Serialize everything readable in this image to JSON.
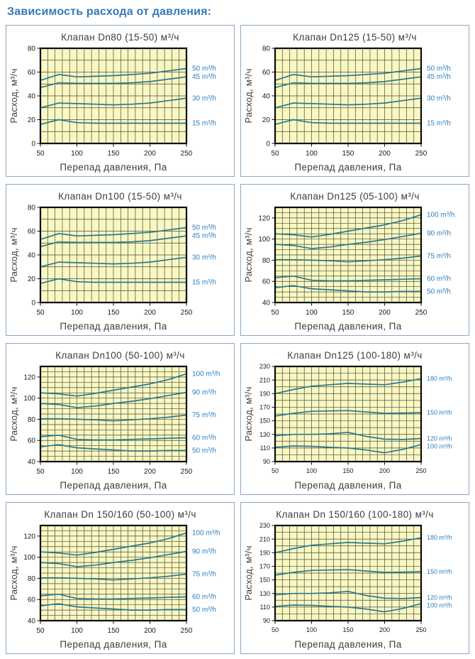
{
  "page_title": "Зависимость расхода от давления:",
  "axis_labels": {
    "x": "Перепад давления, Па",
    "y": "Расход, м³/ч"
  },
  "colors": {
    "page_title_blue": "#3579b6",
    "panel_border": "#8aa6c5",
    "chart_title_text": "#3d3d3d",
    "plot_bg": "#f9f7c2",
    "grid_line": "#4b4b3a",
    "plot_border": "#0a0a0a",
    "series_line": "#2a7a8f",
    "series_label_blue": "#2e7ec0",
    "tick_text": "#1a1a1a"
  },
  "chart_data": [
    {
      "type": "line",
      "title": "Клапан Dn80 (15-50) м³/ч",
      "xlabel": "Перепад давления, Па",
      "ylabel": "Расход, м³/ч",
      "xlim": [
        50,
        250
      ],
      "ylim": [
        0,
        80
      ],
      "xticks": [
        50,
        100,
        150,
        200,
        250
      ],
      "yticks": [
        0,
        20,
        40,
        60,
        80
      ],
      "x_grid_step": 10,
      "y_grid_step": 10,
      "x": [
        50,
        75,
        100,
        125,
        150,
        175,
        200,
        225,
        250
      ],
      "series": [
        {
          "name": "50 m³/h",
          "values": [
            53,
            58,
            56,
            56.5,
            57,
            58,
            59,
            61,
            63
          ]
        },
        {
          "name": "45 m³/h",
          "values": [
            47,
            51,
            50.5,
            50.5,
            50.5,
            51,
            52,
            54,
            56
          ]
        },
        {
          "name": "30 m³/h",
          "values": [
            30,
            34,
            33.5,
            33,
            32.5,
            33,
            34,
            36,
            38
          ]
        },
        {
          "name": "15 m³/h",
          "values": [
            16,
            20,
            17.5,
            17,
            17,
            17,
            17,
            17,
            17
          ]
        }
      ]
    },
    {
      "type": "line",
      "title": "Клапан Dn125 (15-50) м³/ч",
      "xlabel": "Перепад давления, Па",
      "ylabel": "Расход, м³/ч",
      "xlim": [
        50,
        250
      ],
      "ylim": [
        0,
        80
      ],
      "xticks": [
        50,
        100,
        150,
        200,
        250
      ],
      "yticks": [
        0,
        20,
        40,
        60,
        80
      ],
      "x_grid_step": 10,
      "y_grid_step": 10,
      "x": [
        50,
        75,
        100,
        125,
        150,
        175,
        200,
        225,
        250
      ],
      "series": [
        {
          "name": "50 m³/h",
          "values": [
            53,
            58,
            56,
            56.5,
            57,
            58,
            59,
            61,
            63
          ]
        },
        {
          "name": "45 m³/h",
          "values": [
            47,
            51,
            50.5,
            50.5,
            50.5,
            51,
            52,
            54,
            56
          ]
        },
        {
          "name": "30 m³/h",
          "values": [
            30,
            34,
            33.5,
            33,
            32.5,
            33,
            34,
            36,
            38
          ]
        },
        {
          "name": "15 m³/h",
          "values": [
            16,
            20,
            17.5,
            17,
            17,
            17,
            17,
            17,
            17
          ]
        }
      ]
    },
    {
      "type": "line",
      "title": "Клапан Dn100 (15-50) м³/ч",
      "xlabel": "Перепад давления, Па",
      "ylabel": "Расход, м³/ч",
      "xlim": [
        50,
        250
      ],
      "ylim": [
        0,
        80
      ],
      "xticks": [
        50,
        100,
        150,
        200,
        250
      ],
      "yticks": [
        0,
        20,
        40,
        60,
        80
      ],
      "x_grid_step": 10,
      "y_grid_step": 10,
      "x": [
        50,
        75,
        100,
        125,
        150,
        175,
        200,
        225,
        250
      ],
      "series": [
        {
          "name": "50 m³/h",
          "values": [
            53,
            58,
            56,
            56.5,
            57,
            58,
            59,
            61,
            63
          ]
        },
        {
          "name": "45 m³/h",
          "values": [
            47,
            51,
            50.5,
            50.5,
            50.5,
            51,
            52,
            54,
            56
          ]
        },
        {
          "name": "30 m³/h",
          "values": [
            30,
            34,
            33.5,
            33,
            32.5,
            33,
            34,
            36,
            38
          ]
        },
        {
          "name": "15 m³/h",
          "values": [
            16,
            20,
            17.5,
            17,
            17,
            17,
            17,
            17,
            17
          ]
        }
      ]
    },
    {
      "type": "line",
      "title": "Клапан Dn125 (05-100) м³/ч",
      "xlabel": "Перепад давления, Па",
      "ylabel": "Расход, м³/ч",
      "xlim": [
        50,
        250
      ],
      "ylim": [
        40,
        130
      ],
      "xticks": [
        50,
        100,
        150,
        200,
        250
      ],
      "yticks": [
        40,
        60,
        80,
        100,
        120
      ],
      "x_grid_step": 10,
      "y_grid_step": 5,
      "x": [
        50,
        75,
        100,
        125,
        150,
        175,
        200,
        225,
        250
      ],
      "series": [
        {
          "name": "100 m³/h",
          "values": [
            105,
            104,
            102,
            104.5,
            107.5,
            110.5,
            113.5,
            117.5,
            123
          ]
        },
        {
          "name": "90 m³/h",
          "values": [
            95,
            94,
            91,
            92.5,
            95,
            97,
            99.5,
            102.5,
            105.5
          ]
        },
        {
          "name": "75 m³/h",
          "values": [
            80.5,
            80.5,
            80,
            79.5,
            78.5,
            79.5,
            80.5,
            82,
            84
          ]
        },
        {
          "name": "60 m³/h",
          "values": [
            63.5,
            65,
            61,
            60.5,
            60.5,
            61,
            61.5,
            62,
            62.5
          ]
        },
        {
          "name": "50 m³/h",
          "values": [
            54,
            56,
            53,
            52,
            51,
            50,
            50,
            50.5,
            50.5
          ]
        }
      ]
    },
    {
      "type": "line",
      "title": "Клапан Dn100 (50-100) м³/ч",
      "xlabel": "Перепад давления, Па",
      "ylabel": "Расход, м³/ч",
      "xlim": [
        50,
        250
      ],
      "ylim": [
        40,
        130
      ],
      "xticks": [
        50,
        100,
        150,
        200,
        250
      ],
      "yticks": [
        40,
        60,
        80,
        100,
        120
      ],
      "x_grid_step": 10,
      "y_grid_step": 5,
      "x": [
        50,
        75,
        100,
        125,
        150,
        175,
        200,
        225,
        250
      ],
      "series": [
        {
          "name": "100 m³/h",
          "values": [
            105,
            104,
            102,
            104.5,
            107.5,
            110.5,
            113.5,
            117.5,
            123
          ]
        },
        {
          "name": "90 m³/h",
          "values": [
            95,
            94,
            91,
            92.5,
            95,
            97,
            99.5,
            102.5,
            105.5
          ]
        },
        {
          "name": "75 m³/h",
          "values": [
            80.5,
            80.5,
            80,
            79.5,
            78.5,
            79.5,
            80.5,
            82,
            84
          ]
        },
        {
          "name": "60 m³/h",
          "values": [
            63.5,
            65,
            61,
            60.5,
            60.5,
            61,
            61.5,
            62,
            62.5
          ]
        },
        {
          "name": "50 m³/h",
          "values": [
            54,
            56,
            53,
            52,
            51,
            50,
            50,
            50.5,
            50.5
          ]
        }
      ]
    },
    {
      "type": "line",
      "title": "Клапан Dn125 (100-180) м³/ч",
      "xlabel": "Перепад давления, Па",
      "ylabel": "Расход, м³/ч",
      "xlim": [
        50,
        250
      ],
      "ylim": [
        90,
        230
      ],
      "xticks": [
        50,
        100,
        150,
        200,
        250
      ],
      "yticks": [
        90,
        110,
        130,
        150,
        170,
        190,
        210,
        230
      ],
      "x_grid_step": 10,
      "y_grid_step": 10,
      "x": [
        50,
        75,
        100,
        125,
        150,
        175,
        200,
        225,
        250
      ],
      "series": [
        {
          "name": "180 m³/h",
          "values": [
            190,
            196,
            201,
            203,
            205,
            204,
            203,
            207,
            212
          ]
        },
        {
          "name": "150 m³/h",
          "values": [
            157,
            161,
            164,
            164.5,
            165,
            163,
            161,
            161.5,
            162
          ]
        },
        {
          "name": "120 m³/h",
          "values": [
            128,
            130,
            130,
            131,
            133,
            127,
            123,
            122.5,
            124
          ]
        },
        {
          "name": "100 m³/h",
          "values": [
            111,
            113,
            112.5,
            111,
            110,
            107,
            103,
            108,
            115
          ]
        }
      ]
    },
    {
      "type": "line",
      "title": "Клапан Dn 150/160 (50-100) м³/ч",
      "xlabel": "Перепад давления, Па",
      "ylabel": "Расход, м³/ч",
      "xlim": [
        50,
        250
      ],
      "ylim": [
        40,
        130
      ],
      "xticks": [
        50,
        100,
        150,
        200,
        250
      ],
      "yticks": [
        40,
        60,
        80,
        100,
        120
      ],
      "x_grid_step": 10,
      "y_grid_step": 5,
      "x": [
        50,
        75,
        100,
        125,
        150,
        175,
        200,
        225,
        250
      ],
      "series": [
        {
          "name": "100 m³/h",
          "values": [
            105,
            104,
            102,
            104.5,
            107.5,
            110.5,
            113.5,
            117.5,
            123
          ]
        },
        {
          "name": "90 m³/h",
          "values": [
            95,
            94,
            91,
            92.5,
            95,
            97,
            99.5,
            102.5,
            105.5
          ]
        },
        {
          "name": "75 m³/h",
          "values": [
            80.5,
            80.5,
            80,
            79.5,
            78.5,
            79.5,
            80.5,
            82,
            84
          ]
        },
        {
          "name": "60 m³/h",
          "values": [
            63.5,
            65,
            61,
            60.5,
            60.5,
            61,
            61.5,
            62,
            62.5
          ]
        },
        {
          "name": "50 m³/h",
          "values": [
            54,
            56,
            53,
            52,
            51,
            50,
            50,
            50.5,
            50.5
          ]
        }
      ]
    },
    {
      "type": "line",
      "title": "Клапан Dn 150/160 (100-180) м³/ч",
      "xlabel": "Перепад давления, Па",
      "ylabel": "Расход, м³/ч",
      "xlim": [
        50,
        250
      ],
      "ylim": [
        90,
        230
      ],
      "xticks": [
        50,
        100,
        150,
        200,
        250
      ],
      "yticks": [
        90,
        110,
        130,
        150,
        170,
        190,
        210,
        230
      ],
      "x_grid_step": 10,
      "y_grid_step": 10,
      "x": [
        50,
        75,
        100,
        125,
        150,
        175,
        200,
        225,
        250
      ],
      "series": [
        {
          "name": "180 m³/h",
          "values": [
            190,
            196,
            201,
            203,
            205,
            204,
            203,
            207,
            212
          ]
        },
        {
          "name": "150 m³/h",
          "values": [
            157,
            161,
            164,
            164.5,
            165,
            163,
            161,
            161.5,
            162
          ]
        },
        {
          "name": "120 m³/h",
          "values": [
            128,
            130,
            130,
            131,
            133,
            127,
            123,
            122.5,
            124
          ]
        },
        {
          "name": "100 m³/h",
          "values": [
            111,
            113,
            112.5,
            111,
            110,
            107,
            103,
            108,
            115
          ]
        }
      ]
    }
  ]
}
